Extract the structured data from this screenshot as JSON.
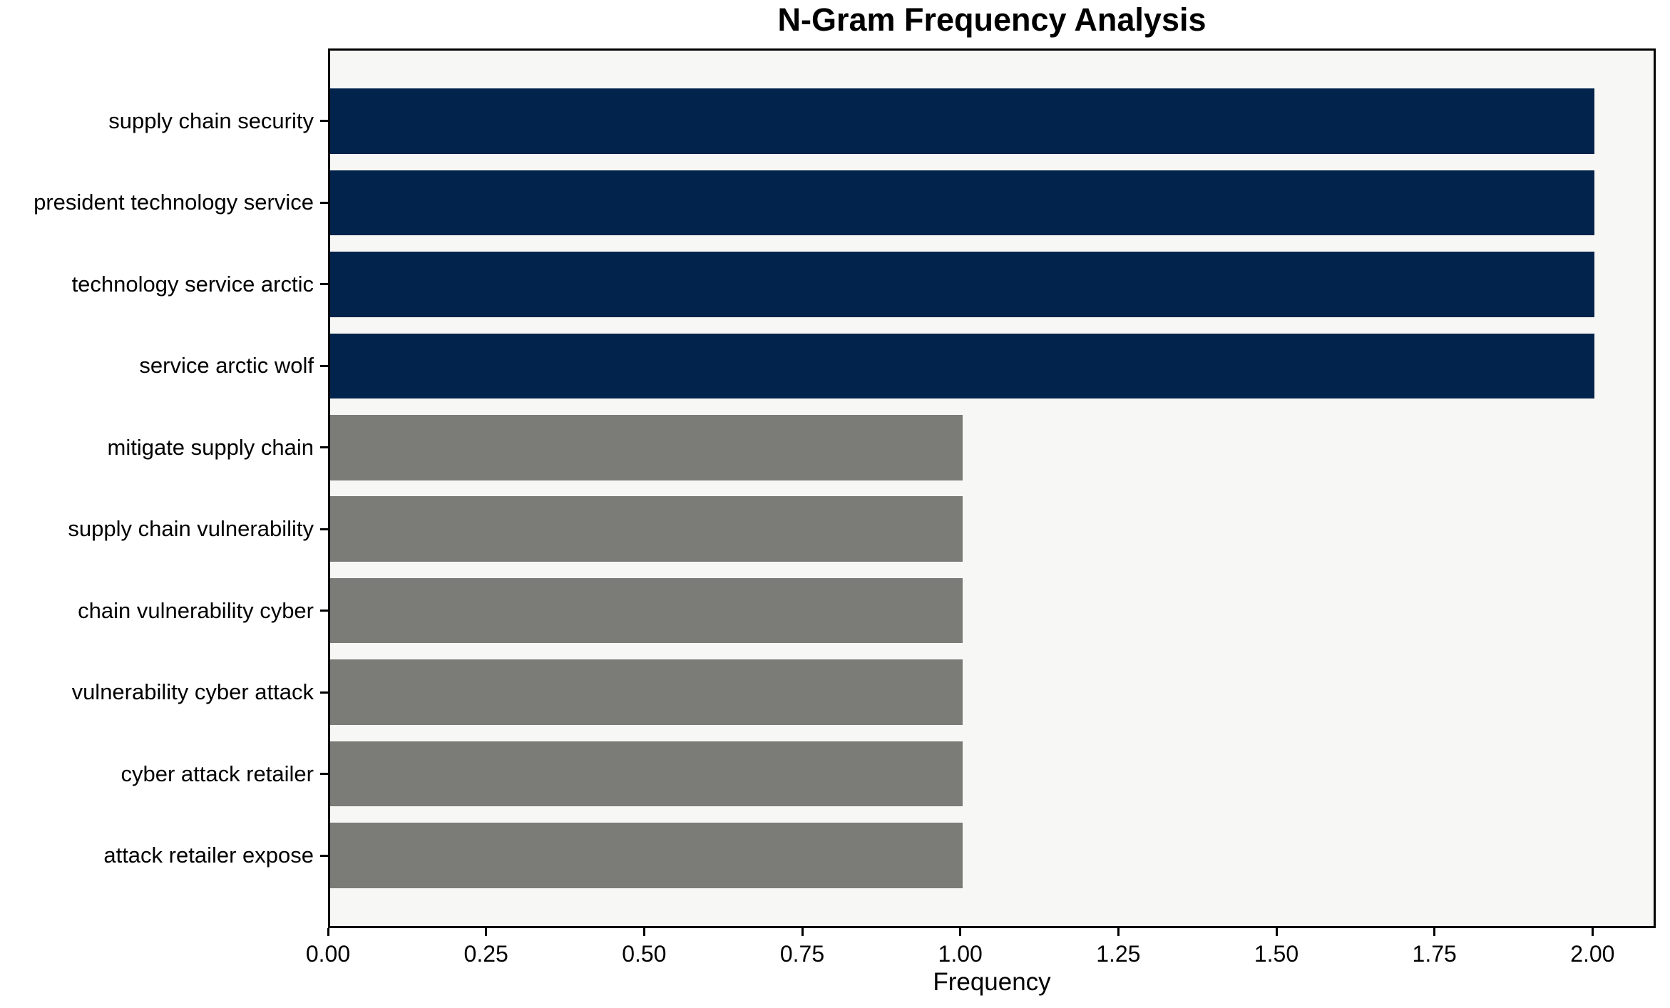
{
  "chart_data": {
    "type": "bar",
    "orientation": "horizontal",
    "title": "N-Gram Frequency Analysis",
    "xlabel": "Frequency",
    "ylabel": "",
    "categories": [
      "supply chain security",
      "president technology service",
      "technology service arctic",
      "service arctic wolf",
      "mitigate supply chain",
      "supply chain vulnerability",
      "chain vulnerability cyber",
      "vulnerability cyber attack",
      "cyber attack retailer",
      "attack retailer expose"
    ],
    "values": [
      2,
      2,
      2,
      2,
      1,
      1,
      1,
      1,
      1,
      1
    ],
    "bar_colors": [
      "#02234B",
      "#02234B",
      "#02234B",
      "#02234B",
      "#7B7B77",
      "#7B7B77",
      "#7B7B77",
      "#7B7B77",
      "#7B7B77",
      "#7B7B77"
    ],
    "xlim": [
      0,
      2.1
    ],
    "xticks": {
      "values": [
        0,
        0.25,
        0.5,
        0.75,
        1.0,
        1.25,
        1.5,
        1.75,
        2.0
      ],
      "labels": [
        "0.00",
        "0.25",
        "0.50",
        "0.75",
        "1.00",
        "1.25",
        "1.50",
        "1.75",
        "2.00"
      ]
    },
    "grid": false,
    "legend_position": "none",
    "colors": {
      "high_frequency_bar": "#02234B",
      "low_frequency_bar": "#7B7B77",
      "plot_background": "#F7F7F5",
      "figure_background": "#FFFFFF",
      "spine": "#000000",
      "text": "#000000"
    }
  }
}
